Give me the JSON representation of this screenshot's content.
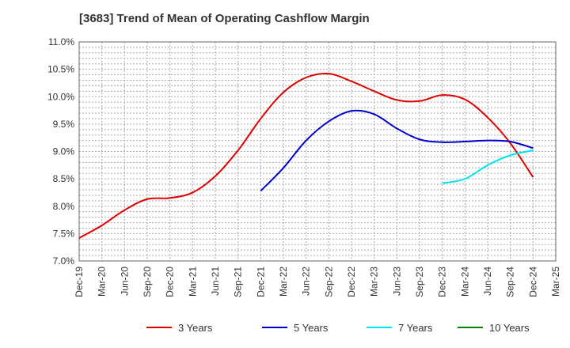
{
  "chart_data": {
    "type": "line",
    "title": "[3683]  Trend of Mean of Operating Cashflow Margin",
    "xlabel": "",
    "ylabel": "",
    "x": [
      "Dec-19",
      "Mar-20",
      "Jun-20",
      "Sep-20",
      "Dec-20",
      "Mar-21",
      "Jun-21",
      "Sep-21",
      "Dec-21",
      "Mar-22",
      "Jun-22",
      "Sep-22",
      "Dec-22",
      "Mar-23",
      "Jun-23",
      "Sep-23",
      "Dec-23",
      "Mar-24",
      "Jun-24",
      "Sep-24",
      "Dec-24",
      "Mar-25"
    ],
    "ylim": [
      7.0,
      11.0
    ],
    "yticks": [
      7.0,
      7.5,
      8.0,
      8.5,
      9.0,
      9.5,
      10.0,
      10.5,
      11.0
    ],
    "ytick_labels": [
      "7.0%",
      "7.5%",
      "8.0%",
      "8.5%",
      "9.0%",
      "9.5%",
      "10.0%",
      "10.5%",
      "11.0%"
    ],
    "grid": true,
    "legend_position": "bottom",
    "series": [
      {
        "name": "3 Years",
        "color": "#e00000",
        "values": [
          7.42,
          7.65,
          7.93,
          8.13,
          8.15,
          8.25,
          8.55,
          9.02,
          9.6,
          10.08,
          10.35,
          10.42,
          10.28,
          10.1,
          9.94,
          9.92,
          10.03,
          9.95,
          9.62,
          9.15,
          8.53,
          null
        ]
      },
      {
        "name": "5 Years",
        "color": "#0000cc",
        "values": [
          null,
          null,
          null,
          null,
          null,
          null,
          null,
          null,
          8.28,
          8.7,
          9.2,
          9.55,
          9.74,
          9.68,
          9.42,
          9.22,
          9.17,
          9.18,
          9.2,
          9.18,
          9.06,
          null
        ]
      },
      {
        "name": "7 Years",
        "color": "#00e5ee",
        "values": [
          null,
          null,
          null,
          null,
          null,
          null,
          null,
          null,
          null,
          null,
          null,
          null,
          null,
          null,
          null,
          null,
          8.42,
          8.5,
          8.75,
          8.93,
          9.02,
          null
        ]
      },
      {
        "name": "10 Years",
        "color": "#008000",
        "values": [
          null,
          null,
          null,
          null,
          null,
          null,
          null,
          null,
          null,
          null,
          null,
          null,
          null,
          null,
          null,
          null,
          null,
          null,
          null,
          null,
          null,
          null
        ]
      }
    ]
  }
}
